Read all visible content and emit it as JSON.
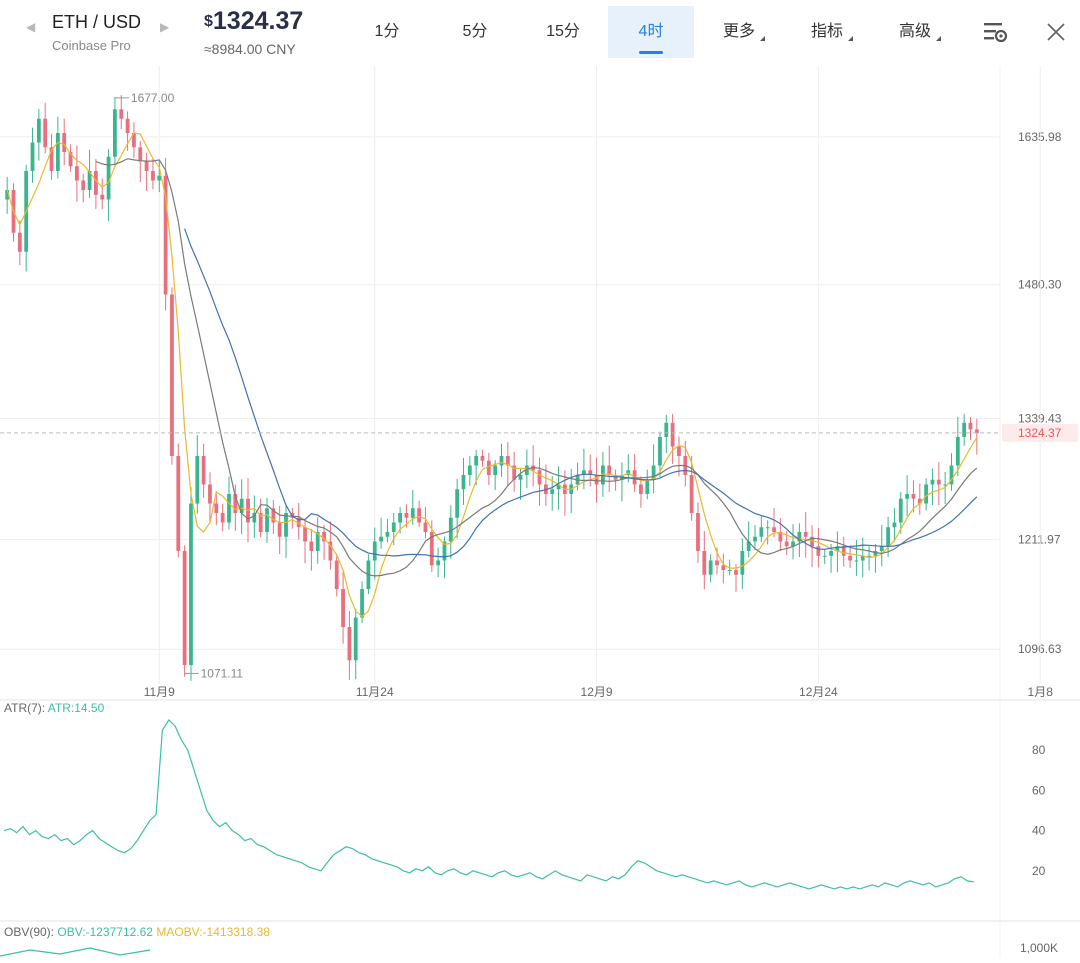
{
  "header": {
    "pair": "ETH / USD",
    "exchange": "Coinbase Pro",
    "price_currency": "$",
    "price": "1324.37",
    "price_cny": "≈8984.00 CNY",
    "intervals": [
      {
        "label": "1分",
        "active": false,
        "dropdown": false
      },
      {
        "label": "5分",
        "active": false,
        "dropdown": false
      },
      {
        "label": "15分",
        "active": false,
        "dropdown": false
      },
      {
        "label": "4时",
        "active": true,
        "dropdown": false
      },
      {
        "label": "更多",
        "active": false,
        "dropdown": true
      },
      {
        "label": "指标",
        "active": false,
        "dropdown": true
      },
      {
        "label": "高级",
        "active": false,
        "dropdown": true
      }
    ],
    "icons": {
      "prev": "caret-left-icon",
      "next": "caret-right-icon",
      "settings": "chart-settings-icon",
      "close": "close-icon"
    }
  },
  "colors": {
    "up": "#3bb58e",
    "down": "#e8707e",
    "ma_yellow": "#e8b930",
    "ma_blue": "#3f72b4",
    "ma_gray": "#7a7a7a",
    "atr": "#3cbfa6",
    "obv": "#3cbfa6",
    "maobv": "#e8b930",
    "grid": "#eeeeee",
    "last_price": "#e05a5a"
  },
  "chart_data": [
    {
      "type": "candlestick",
      "x_ticks": [
        "11月9",
        "11月24",
        "12月9",
        "12月24",
        "1月8"
      ],
      "y_ticks": [
        1096.63,
        1211.97,
        1339.43,
        1480.3,
        1635.98
      ],
      "ylim": [
        1060,
        1700
      ],
      "last_price": 1324.37,
      "annotations": [
        {
          "label": "1677.00",
          "value": 1677.0
        },
        {
          "label": "1071.11",
          "value": 1071.11
        }
      ],
      "closes": [
        1580,
        1535,
        1515,
        1600,
        1630,
        1655,
        1625,
        1600,
        1640,
        1620,
        1605,
        1590,
        1580,
        1600,
        1575,
        1570,
        1615,
        1665,
        1655,
        1640,
        1625,
        1610,
        1600,
        1590,
        1595,
        1470,
        1300,
        1200,
        1080,
        1250,
        1300,
        1270,
        1250,
        1240,
        1230,
        1260,
        1240,
        1255,
        1230,
        1240,
        1220,
        1245,
        1230,
        1215,
        1240,
        1235,
        1225,
        1210,
        1200,
        1220,
        1210,
        1190,
        1160,
        1120,
        1085,
        1130,
        1160,
        1190,
        1210,
        1215,
        1220,
        1230,
        1240,
        1235,
        1245,
        1230,
        1220,
        1185,
        1190,
        1210,
        1235,
        1265,
        1280,
        1290,
        1300,
        1295,
        1280,
        1290,
        1300,
        1290,
        1275,
        1280,
        1290,
        1285,
        1270,
        1260,
        1265,
        1270,
        1260,
        1270,
        1280,
        1285,
        1280,
        1270,
        1290,
        1280,
        1275,
        1280,
        1285,
        1270,
        1260,
        1275,
        1290,
        1320,
        1335,
        1310,
        1300,
        1280,
        1240,
        1200,
        1175,
        1190,
        1185,
        1180,
        1180,
        1175,
        1200,
        1210,
        1215,
        1225,
        1225,
        1220,
        1210,
        1205,
        1210,
        1220,
        1215,
        1205,
        1195,
        1195,
        1200,
        1205,
        1195,
        1190,
        1190,
        1195,
        1195,
        1200,
        1205,
        1225,
        1230,
        1255,
        1260,
        1255,
        1250,
        1270,
        1275,
        1270,
        1270,
        1290,
        1320,
        1335,
        1328,
        1324
      ],
      "series": [
        {
          "name": "MA-yellow",
          "color": "#e8b930"
        },
        {
          "name": "MA-gray",
          "color": "#7a7a7a"
        },
        {
          "name": "MA-blue",
          "color": "#3f72b4"
        }
      ]
    },
    {
      "type": "line",
      "label": "ATR(7):",
      "value_label": "ATR:14.50",
      "y_ticks": [
        20,
        40,
        60,
        80
      ],
      "ylim": [
        0,
        100
      ],
      "values": [
        40,
        41,
        39,
        42,
        38,
        40,
        37,
        36,
        38,
        35,
        36,
        33,
        35,
        38,
        40,
        36,
        34,
        32,
        30,
        29,
        31,
        35,
        40,
        45,
        48,
        90,
        95,
        92,
        85,
        80,
        70,
        60,
        50,
        45,
        42,
        44,
        40,
        38,
        35,
        36,
        33,
        32,
        30,
        28,
        27,
        26,
        25,
        24,
        22,
        21,
        20,
        24,
        28,
        30,
        32,
        31,
        29,
        28,
        26,
        25,
        24,
        23,
        22,
        20,
        19,
        21,
        20,
        22,
        19,
        18,
        20,
        21,
        19,
        18,
        20,
        19,
        18,
        17,
        19,
        20,
        18,
        17,
        18,
        19,
        17,
        16,
        18,
        20,
        18,
        17,
        16,
        15,
        18,
        17,
        16,
        15,
        17,
        16,
        18,
        22,
        25,
        24,
        22,
        20,
        19,
        18,
        17,
        18,
        17,
        16,
        15,
        14,
        15,
        14,
        13,
        14,
        15,
        13,
        12,
        13,
        14,
        13,
        12,
        13,
        14,
        13,
        12,
        11,
        12,
        13,
        12,
        11,
        12,
        11,
        12,
        11,
        12,
        13,
        12,
        14,
        13,
        12,
        14,
        15,
        14,
        13,
        14,
        12,
        13,
        14,
        16,
        17,
        15,
        14.5
      ],
      "color": "#3cbfa6"
    },
    {
      "type": "line",
      "label": "OBV(90):",
      "value_labels": [
        "OBV:-1237712.62",
        "MAOBV:-1413318.38"
      ],
      "y_ticks_text": [
        "1,000K"
      ]
    }
  ]
}
